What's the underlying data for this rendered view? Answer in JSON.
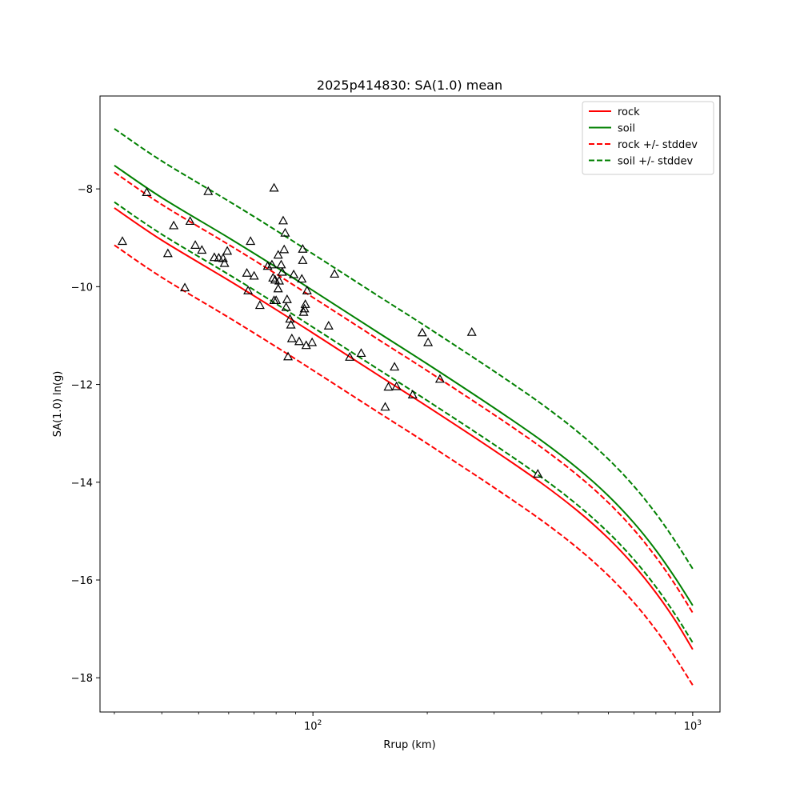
{
  "chart_data": {
    "type": "line",
    "title": "2025p414830: SA(1.0) mean",
    "xlabel": "Rrup (km)",
    "ylabel": "SA(1.0) ln(g)",
    "xscale": "log",
    "xlim": [
      27.5,
      1180
    ],
    "ylim": [
      -18.7,
      -6.1
    ],
    "xticks": [
      {
        "value": 100,
        "label": "10",
        "exp": "2"
      },
      {
        "value": 1000,
        "label": "10",
        "exp": "3"
      }
    ],
    "yticks": [
      {
        "value": -8,
        "label": "−8"
      },
      {
        "value": -10,
        "label": "−10"
      },
      {
        "value": -12,
        "label": "−12"
      },
      {
        "value": -14,
        "label": "−14"
      },
      {
        "value": -16,
        "label": "−16"
      },
      {
        "value": -18,
        "label": "−18"
      }
    ],
    "grid": false,
    "legend_position": "top-right",
    "series": [
      {
        "name": "rock",
        "color": "#ff0000",
        "dash": "solid",
        "x": [
          30,
          40,
          60,
          80,
          100,
          150,
          200,
          300,
          400,
          500,
          600,
          700,
          800,
          900,
          1000
        ],
        "y": [
          -8.39,
          -9.05,
          -9.87,
          -10.47,
          -10.95,
          -11.83,
          -12.45,
          -13.35,
          -14.02,
          -14.6,
          -15.15,
          -15.7,
          -16.26,
          -16.83,
          -17.42
        ]
      },
      {
        "name": "soil",
        "color": "#008000",
        "dash": "solid",
        "x": [
          30,
          40,
          60,
          80,
          100,
          150,
          200,
          300,
          400,
          500,
          600,
          700,
          800,
          900,
          1000
        ],
        "y": [
          -7.52,
          -8.18,
          -9.0,
          -9.6,
          -10.08,
          -10.96,
          -11.58,
          -12.48,
          -13.15,
          -13.73,
          -14.28,
          -14.83,
          -15.39,
          -15.96,
          -16.52
        ]
      },
      {
        "name": "rock +/- stddev",
        "color": "#ff0000",
        "dash": "dashed",
        "x": [
          30,
          40,
          60,
          80,
          100,
          150,
          200,
          300,
          400,
          500,
          600,
          700,
          800,
          900,
          1000
        ],
        "y": [
          -7.66,
          -8.32,
          -9.14,
          -9.74,
          -10.22,
          -11.1,
          -11.72,
          -12.62,
          -13.29,
          -13.87,
          -14.42,
          -14.97,
          -15.53,
          -16.1,
          -16.67
        ]
      },
      {
        "name": "",
        "color": "#ff0000",
        "dash": "dashed",
        "x": [
          30,
          40,
          60,
          80,
          100,
          150,
          200,
          300,
          400,
          500,
          600,
          700,
          800,
          900,
          1000
        ],
        "y": [
          -9.15,
          -9.81,
          -10.63,
          -11.23,
          -11.71,
          -12.59,
          -13.21,
          -14.11,
          -14.78,
          -15.36,
          -15.91,
          -16.46,
          -17.02,
          -17.59,
          -18.15
        ]
      },
      {
        "name": "soil +/- stddev",
        "color": "#008000",
        "dash": "dashed",
        "x": [
          30,
          40,
          60,
          80,
          100,
          150,
          200,
          300,
          400,
          500,
          600,
          700,
          800,
          900,
          1000
        ],
        "y": [
          -6.77,
          -7.43,
          -8.25,
          -8.85,
          -9.33,
          -10.21,
          -10.83,
          -11.73,
          -12.4,
          -12.98,
          -13.53,
          -14.08,
          -14.64,
          -15.21,
          -15.77
        ]
      },
      {
        "name": "",
        "color": "#008000",
        "dash": "dashed",
        "x": [
          30,
          40,
          60,
          80,
          100,
          150,
          200,
          300,
          400,
          500,
          600,
          700,
          800,
          900,
          1000
        ],
        "y": [
          -8.27,
          -8.93,
          -9.75,
          -10.35,
          -10.83,
          -11.71,
          -12.33,
          -13.23,
          -13.9,
          -14.48,
          -15.03,
          -15.58,
          -16.14,
          -16.71,
          -17.28
        ]
      }
    ],
    "observations": {
      "marker": "triangle",
      "color": "#000000",
      "points": [
        [
          31.5,
          -9.07
        ],
        [
          36.5,
          -8.07
        ],
        [
          41.5,
          -9.32
        ],
        [
          43.0,
          -8.75
        ],
        [
          46.0,
          -10.02
        ],
        [
          47.5,
          -8.66
        ],
        [
          49.0,
          -9.15
        ],
        [
          51.0,
          -9.25
        ],
        [
          53.0,
          -8.05
        ],
        [
          55.0,
          -9.4
        ],
        [
          56.5,
          -9.41
        ],
        [
          58.0,
          -9.42
        ],
        [
          58.5,
          -9.52
        ],
        [
          59.5,
          -9.27
        ],
        [
          67.0,
          -9.72
        ],
        [
          67.5,
          -10.08
        ],
        [
          68.5,
          -9.07
        ],
        [
          70.0,
          -9.78
        ],
        [
          72.5,
          -10.38
        ],
        [
          76.0,
          -9.58
        ],
        [
          78.0,
          -9.55
        ],
        [
          78.5,
          -9.82
        ],
        [
          79.0,
          -7.98
        ],
        [
          79.0,
          -10.28
        ],
        [
          79.5,
          -9.86
        ],
        [
          80.0,
          -10.28
        ],
        [
          81.0,
          -10.04
        ],
        [
          81.0,
          -9.35
        ],
        [
          81.5,
          -9.88
        ],
        [
          82.5,
          -9.55
        ],
        [
          83.0,
          -9.7
        ],
        [
          83.5,
          -8.65
        ],
        [
          84.0,
          -9.24
        ],
        [
          84.5,
          -8.9
        ],
        [
          85.0,
          -10.42
        ],
        [
          85.5,
          -10.26
        ],
        [
          86.0,
          -11.43
        ],
        [
          87.0,
          -10.66
        ],
        [
          87.5,
          -10.78
        ],
        [
          88.0,
          -11.06
        ],
        [
          89.0,
          -9.75
        ],
        [
          92.0,
          -11.12
        ],
        [
          93.5,
          -9.84
        ],
        [
          94.0,
          -9.23
        ],
        [
          94.0,
          -9.46
        ],
        [
          94.5,
          -10.52
        ],
        [
          95.0,
          -10.45
        ],
        [
          95.5,
          -10.36
        ],
        [
          96.0,
          -11.2
        ],
        [
          96.5,
          -10.08
        ],
        [
          99.5,
          -11.14
        ],
        [
          110.0,
          -10.8
        ],
        [
          114.0,
          -9.74
        ],
        [
          125.0,
          -11.44
        ],
        [
          134.0,
          -11.36
        ],
        [
          155.0,
          -12.46
        ],
        [
          158.0,
          -12.05
        ],
        [
          164.0,
          -11.64
        ],
        [
          166.0,
          -12.04
        ],
        [
          183.0,
          -12.21
        ],
        [
          194.0,
          -10.94
        ],
        [
          201.0,
          -11.14
        ],
        [
          216.0,
          -11.89
        ],
        [
          262.0,
          -10.93
        ],
        [
          391.0,
          -13.83
        ]
      ]
    }
  }
}
